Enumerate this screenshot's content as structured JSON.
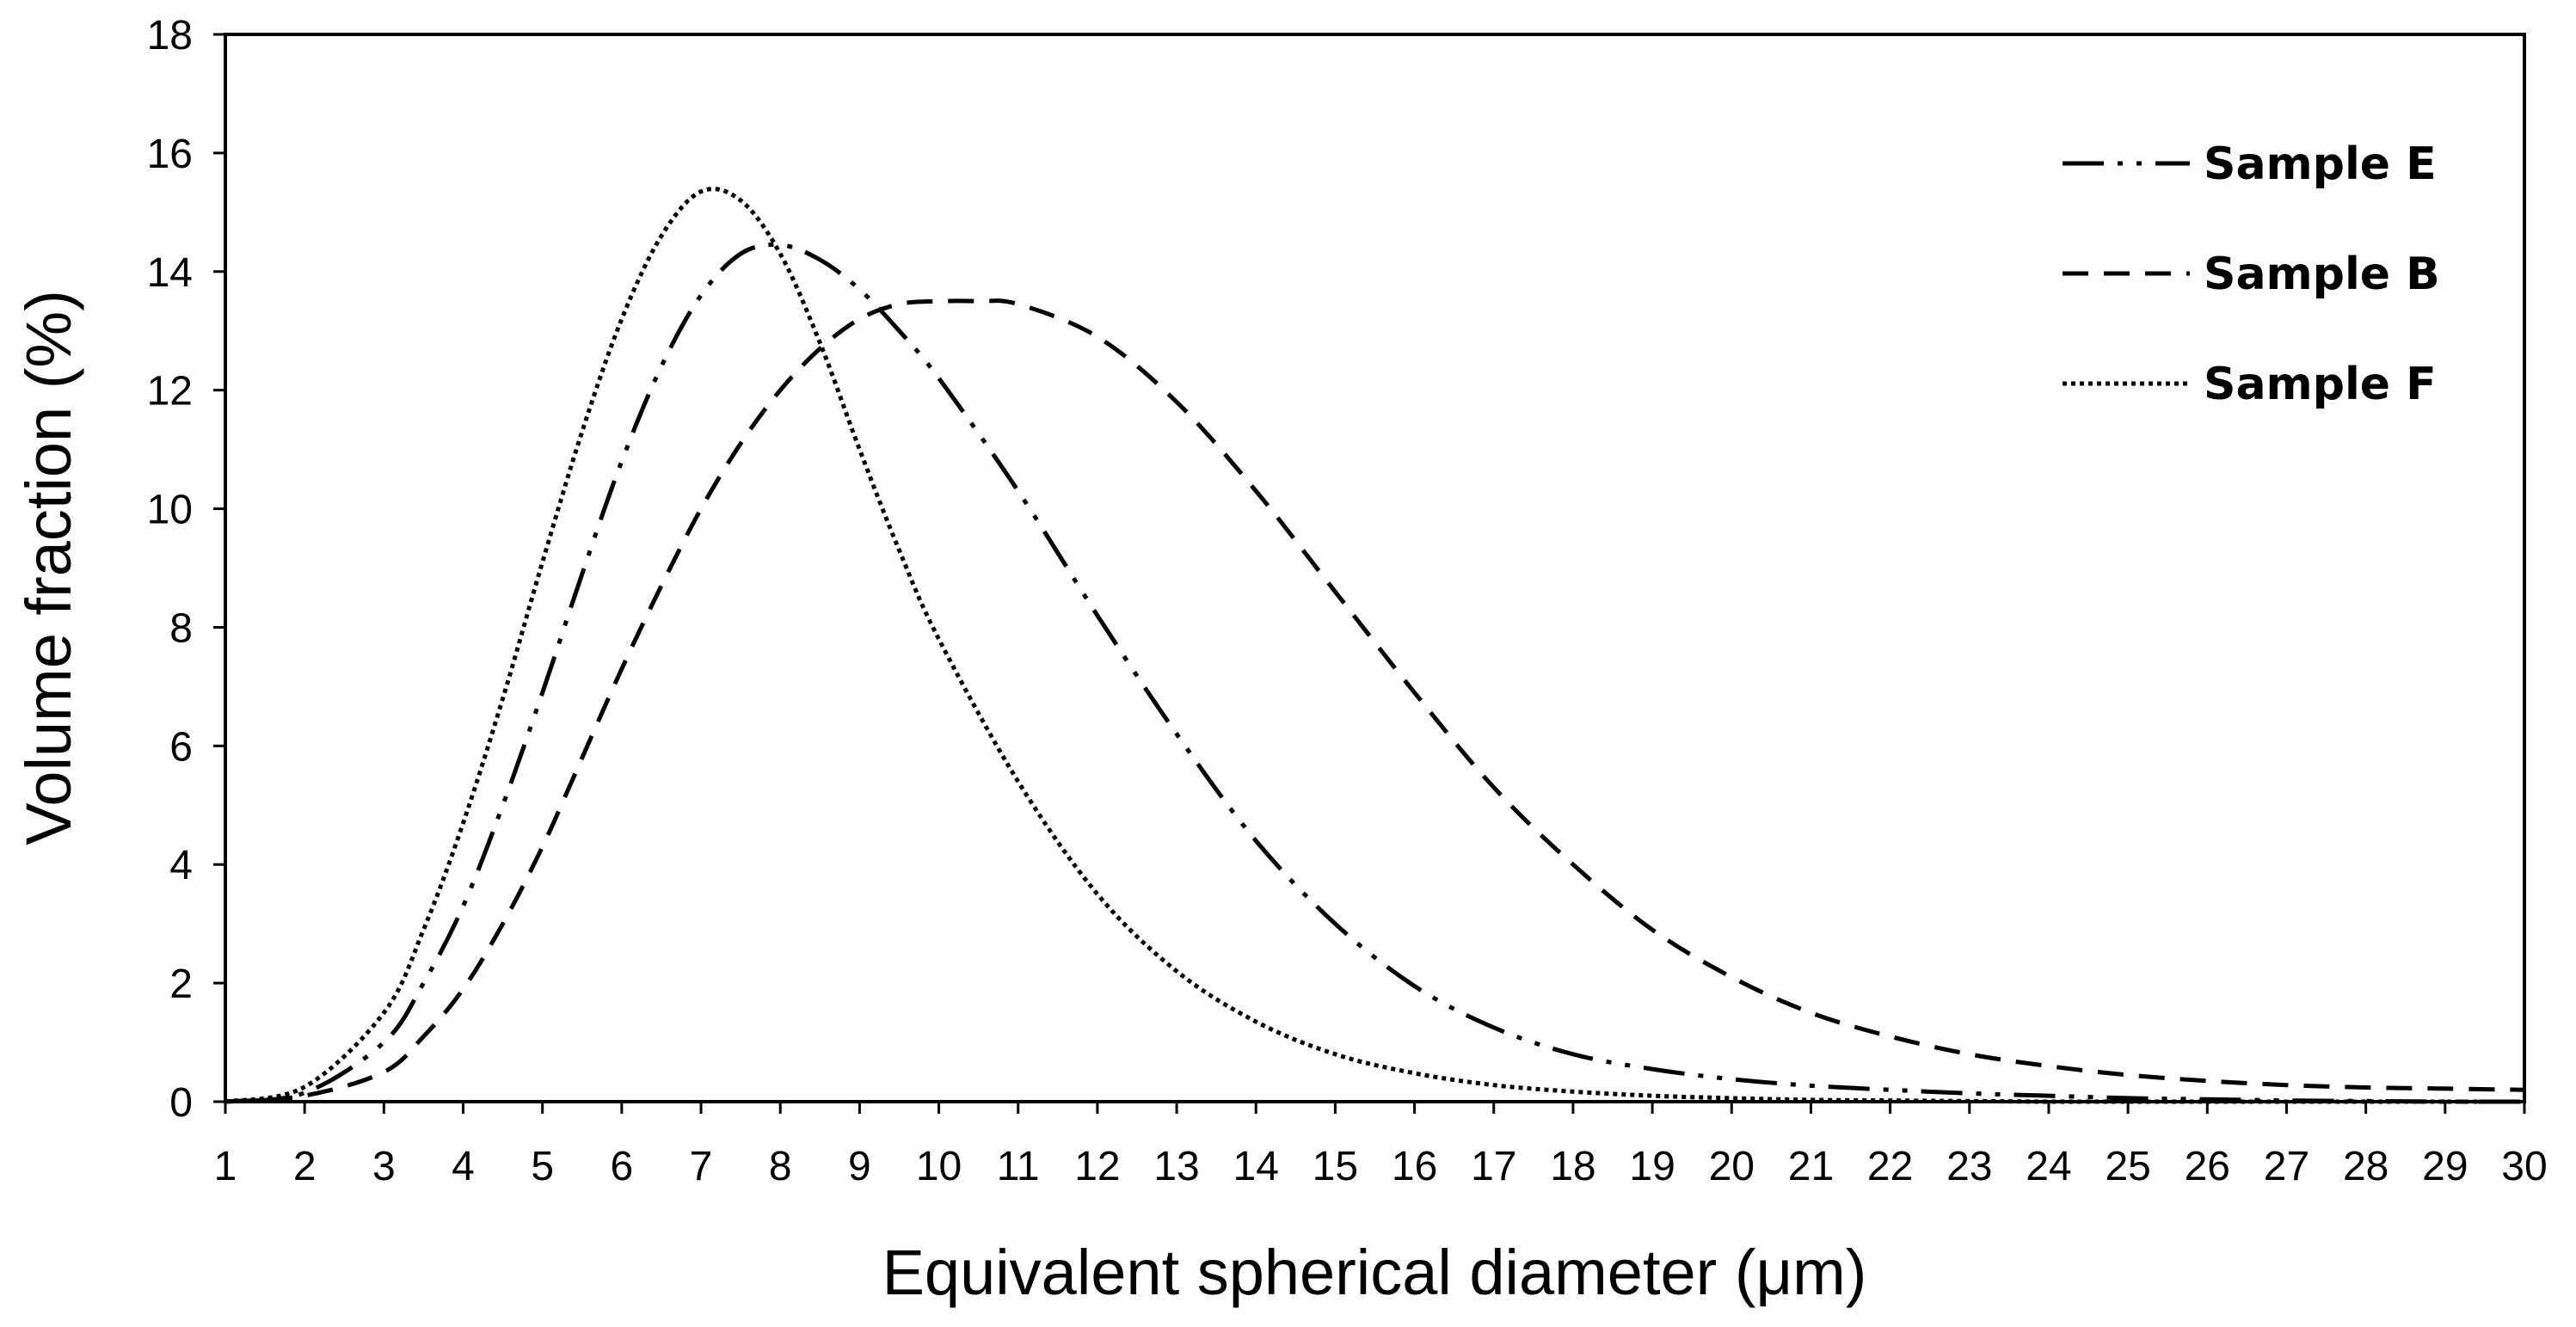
{
  "chart_data": {
    "type": "line",
    "title": "",
    "xlabel": "Equivalent spherical diameter (μm)",
    "ylabel": "Volume fraction (%)",
    "xlim": [
      1,
      30
    ],
    "ylim": [
      0,
      18
    ],
    "xticks": [
      1,
      2,
      3,
      4,
      5,
      6,
      7,
      8,
      9,
      10,
      11,
      12,
      13,
      14,
      15,
      16,
      17,
      18,
      19,
      20,
      21,
      22,
      23,
      24,
      25,
      26,
      27,
      28,
      29,
      30
    ],
    "yticks": [
      0,
      2,
      4,
      6,
      8,
      10,
      12,
      14,
      16,
      18
    ],
    "grid": false,
    "legend_position": "top-right",
    "series": [
      {
        "name": "Sample E",
        "style": "dash-dot-dot",
        "x": [
          1,
          2,
          3,
          3.5,
          4,
          4.5,
          5,
          5.5,
          6,
          6.5,
          7,
          7.5,
          8,
          8.5,
          9,
          9.5,
          10,
          11,
          12,
          13,
          14,
          15,
          16,
          17,
          18,
          19,
          20,
          21,
          22,
          23,
          24,
          25,
          26,
          27,
          28,
          29,
          30
        ],
        "y": [
          0,
          0.15,
          1.0,
          2.0,
          3.3,
          5.0,
          6.9,
          8.9,
          10.8,
          12.4,
          13.6,
          14.3,
          14.45,
          14.2,
          13.7,
          13.0,
          12.2,
          10.3,
          8.2,
          6.2,
          4.4,
          3.0,
          1.95,
          1.25,
          0.8,
          0.55,
          0.38,
          0.27,
          0.2,
          0.14,
          0.1,
          0.06,
          0.04,
          0.02,
          0.01,
          0.0,
          0.0
        ]
      },
      {
        "name": "Sample B",
        "style": "dashed",
        "x": [
          1,
          2,
          3,
          3.5,
          4,
          4.5,
          5,
          5.5,
          6,
          6.5,
          7,
          7.5,
          8,
          8.5,
          9,
          9.5,
          10,
          10.5,
          11,
          12,
          13,
          14,
          15,
          16,
          17,
          18,
          19,
          20,
          21,
          22,
          23,
          24,
          25,
          26,
          27,
          28,
          29,
          30
        ],
        "y": [
          0,
          0.1,
          0.5,
          1.1,
          1.9,
          3.0,
          4.3,
          5.8,
          7.3,
          8.7,
          10.0,
          11.1,
          12.0,
          12.7,
          13.2,
          13.45,
          13.5,
          13.5,
          13.45,
          12.9,
          11.8,
          10.3,
          8.6,
          6.9,
          5.3,
          4.0,
          2.9,
          2.1,
          1.5,
          1.1,
          0.8,
          0.6,
          0.45,
          0.35,
          0.28,
          0.24,
          0.22,
          0.2
        ]
      },
      {
        "name": "Sample F",
        "style": "dotted",
        "x": [
          1,
          2,
          3,
          3.5,
          4,
          4.5,
          5,
          5.5,
          6,
          6.5,
          7,
          7.5,
          8,
          8.5,
          9,
          9.5,
          10,
          11,
          12,
          13,
          14,
          15,
          16,
          17,
          18,
          19,
          20,
          21,
          22,
          23,
          24,
          25,
          26,
          27,
          28,
          29,
          30
        ],
        "y": [
          0,
          0.25,
          1.5,
          2.9,
          4.7,
          6.8,
          9.1,
          11.3,
          13.2,
          14.6,
          15.35,
          15.2,
          14.3,
          12.8,
          11.0,
          9.3,
          7.8,
          5.4,
          3.5,
          2.2,
          1.35,
          0.8,
          0.48,
          0.28,
          0.17,
          0.1,
          0.06,
          0.03,
          0.02,
          0.01,
          0.0,
          0.0,
          0.0,
          0.0,
          0.0,
          0.0,
          0.0
        ]
      }
    ]
  }
}
